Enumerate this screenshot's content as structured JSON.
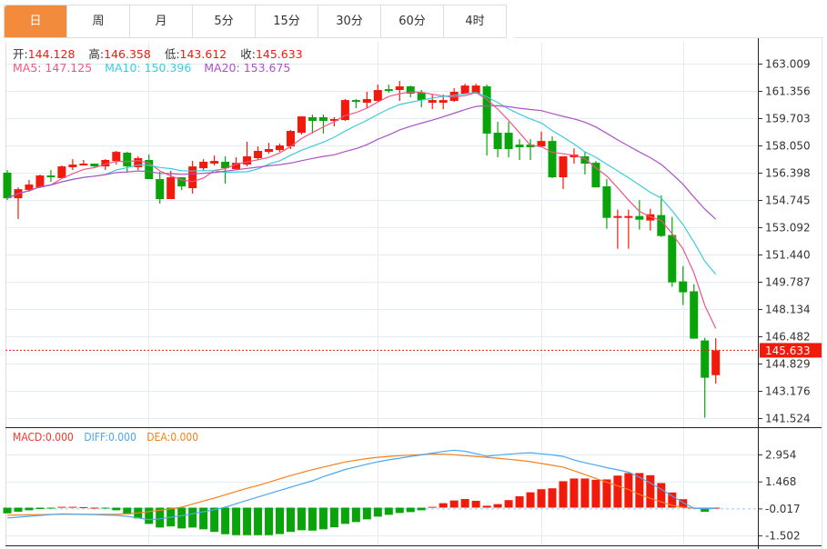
{
  "tabs": [
    {
      "label": "日",
      "active": true
    },
    {
      "label": "周"
    },
    {
      "label": "月"
    },
    {
      "label": "5分"
    },
    {
      "label": "15分"
    },
    {
      "label": "30分"
    },
    {
      "label": "60分"
    },
    {
      "label": "4时"
    }
  ],
  "ohlc_info": {
    "open_label": "开:",
    "open": "144.128",
    "high_label": "高:",
    "high": "146.358",
    "low_label": "低:",
    "low": "143.612",
    "close_label": "收:",
    "close": "145.633"
  },
  "ma_info": {
    "ma5": "MA5: 147.125",
    "ma10": "MA10: 150.396",
    "ma20": "MA20: 153.675"
  },
  "macd_info": {
    "macd": "MACD:0.000",
    "diff": "DIFF:0.000",
    "dea": "DEA:0.000"
  },
  "colors": {
    "up": "#f21a0a",
    "down": "#09a40a",
    "ma5": "#ee5686",
    "ma10": "#3ccbdd",
    "ma20": "#ab52c6",
    "diff": "#4aa8f0",
    "dea": "#f7801e",
    "tab_active": "#f28b3c"
  },
  "chart_data": [
    {
      "type": "candlestick",
      "y_axis_ticks": [
        "163.009",
        "161.356",
        "159.703",
        "158.050",
        "156.398",
        "154.745",
        "153.092",
        "151.440",
        "149.787",
        "148.134",
        "146.482",
        "144.829",
        "143.176",
        "141.524"
      ],
      "ylim": [
        141.524,
        163.009
      ],
      "current_price": "145.633",
      "ma_periods": [
        5,
        10,
        20
      ],
      "candles": [
        [
          156.4,
          156.56,
          154.74,
          154.85
        ],
        [
          154.85,
          155.51,
          153.59,
          155.4
        ],
        [
          155.35,
          155.96,
          155.24,
          155.68
        ],
        [
          155.51,
          156.28,
          155.46,
          156.23
        ],
        [
          156.23,
          156.56,
          155.85,
          156.12
        ],
        [
          156.07,
          156.84,
          156.07,
          156.78
        ],
        [
          156.73,
          157.22,
          156.56,
          156.89
        ],
        [
          156.84,
          157.17,
          156.84,
          156.95
        ],
        [
          156.95,
          156.95,
          156.67,
          156.78
        ],
        [
          156.78,
          157.22,
          156.56,
          157.17
        ],
        [
          157.11,
          157.72,
          156.89,
          157.66
        ],
        [
          157.61,
          157.66,
          156.4,
          156.78
        ],
        [
          156.73,
          157.39,
          156.56,
          157.28
        ],
        [
          157.17,
          157.5,
          156.01,
          156.01
        ],
        [
          156.01,
          156.45,
          154.52,
          154.8
        ],
        [
          154.8,
          156.51,
          154.8,
          156.12
        ],
        [
          156.12,
          156.12,
          155.35,
          155.57
        ],
        [
          155.46,
          157.11,
          155.13,
          156.78
        ],
        [
          156.67,
          157.22,
          156.56,
          157.06
        ],
        [
          156.95,
          157.44,
          156.84,
          157.11
        ],
        [
          157.06,
          157.39,
          155.73,
          156.67
        ],
        [
          156.62,
          157.33,
          156.56,
          157.0
        ],
        [
          156.89,
          158.27,
          156.78,
          157.39
        ],
        [
          157.28,
          157.99,
          157.17,
          157.72
        ],
        [
          157.66,
          158.21,
          157.55,
          157.83
        ],
        [
          157.77,
          158.16,
          157.66,
          158.05
        ],
        [
          157.99,
          158.99,
          157.83,
          158.93
        ],
        [
          158.82,
          159.81,
          158.71,
          159.81
        ],
        [
          159.76,
          159.92,
          158.77,
          159.54
        ],
        [
          159.76,
          159.92,
          158.77,
          159.54
        ],
        [
          159.54,
          159.76,
          159.21,
          159.65
        ],
        [
          159.59,
          160.86,
          159.54,
          160.8
        ],
        [
          160.8,
          160.86,
          160.31,
          160.69
        ],
        [
          160.64,
          161.3,
          160.31,
          160.86
        ],
        [
          160.75,
          161.74,
          160.69,
          161.41
        ],
        [
          161.46,
          161.74,
          161.24,
          161.35
        ],
        [
          161.41,
          161.96,
          160.75,
          161.63
        ],
        [
          161.63,
          161.68,
          160.97,
          161.19
        ],
        [
          161.24,
          161.41,
          160.36,
          160.8
        ],
        [
          160.64,
          161.13,
          160.25,
          160.8
        ],
        [
          160.64,
          161.13,
          160.25,
          160.8
        ],
        [
          160.75,
          161.52,
          160.69,
          161.3
        ],
        [
          161.19,
          161.79,
          161.19,
          161.68
        ],
        [
          161.19,
          161.79,
          161.19,
          161.68
        ],
        [
          161.63,
          161.74,
          157.44,
          158.77
        ],
        [
          158.82,
          159.48,
          157.33,
          157.83
        ],
        [
          158.82,
          159.48,
          157.33,
          157.83
        ],
        [
          158.1,
          158.43,
          157.17,
          157.94
        ],
        [
          158.1,
          158.43,
          157.17,
          157.94
        ],
        [
          157.99,
          158.88,
          157.94,
          158.32
        ],
        [
          158.32,
          158.6,
          156.07,
          156.12
        ],
        [
          156.12,
          157.39,
          155.4,
          157.39
        ],
        [
          157.33,
          157.88,
          156.95,
          157.5
        ],
        [
          157.39,
          157.66,
          156.29,
          156.95
        ],
        [
          157.0,
          157.11,
          155.51,
          155.51
        ],
        [
          155.57,
          156.01,
          153.0,
          153.66
        ],
        [
          153.66,
          154.16,
          151.79,
          153.77
        ],
        [
          153.66,
          154.16,
          151.79,
          153.77
        ],
        [
          153.77,
          154.74,
          152.95,
          153.55
        ],
        [
          153.5,
          154.21,
          152.89,
          153.88
        ],
        [
          153.83,
          155.02,
          152.51,
          152.56
        ],
        [
          152.62,
          153.72,
          149.48,
          149.75
        ],
        [
          149.81,
          150.74,
          148.38,
          149.15
        ],
        [
          149.21,
          149.64,
          146.34,
          146.34
        ],
        [
          146.23,
          146.39,
          141.55,
          143.97
        ],
        [
          144.128,
          146.358,
          143.612,
          145.633
        ]
      ]
    },
    {
      "type": "macd",
      "y_axis_ticks": [
        "2.954",
        "1.468",
        "-0.017",
        "-1.502"
      ],
      "macd": [
        -0.29,
        -0.2,
        -0.12,
        -0.05,
        -0.01,
        0.07,
        0.07,
        0.05,
        0.01,
        -0.02,
        -0.12,
        -0.34,
        -0.57,
        -0.87,
        -1.07,
        -1.01,
        -1.12,
        -1.07,
        -1.17,
        -1.31,
        -1.44,
        -1.49,
        -1.49,
        -1.49,
        -1.49,
        -1.43,
        -1.31,
        -1.22,
        -1.24,
        -1.17,
        -1.06,
        -0.87,
        -0.77,
        -0.62,
        -0.47,
        -0.37,
        -0.27,
        -0.22,
        -0.12,
        0.07,
        0.27,
        0.42,
        0.5,
        0.4,
        0.13,
        0.22,
        0.44,
        0.65,
        0.87,
        1.04,
        1.09,
        1.48,
        1.63,
        1.63,
        1.56,
        1.58,
        1.79,
        1.93,
        1.93,
        1.81,
        1.38,
        0.86,
        0.49,
        0.0,
        -0.2,
        0.0
      ],
      "diff": [
        -0.54,
        -0.5,
        -0.45,
        -0.41,
        -0.36,
        -0.32,
        -0.33,
        -0.35,
        -0.36,
        -0.38,
        -0.4,
        -0.45,
        -0.54,
        -0.63,
        -0.59,
        -0.5,
        -0.42,
        -0.31,
        -0.2,
        -0.09,
        0.05,
        0.24,
        0.43,
        0.61,
        0.79,
        0.97,
        1.15,
        1.33,
        1.5,
        1.73,
        1.93,
        2.13,
        2.27,
        2.42,
        2.55,
        2.66,
        2.75,
        2.85,
        2.93,
        3.03,
        3.12,
        3.19,
        3.13,
        3.0,
        2.86,
        2.92,
        2.97,
        3.02,
        3.05,
        2.99,
        2.93,
        2.85,
        2.65,
        2.5,
        2.37,
        2.23,
        2.11,
        1.98,
        1.7,
        1.38,
        1.03,
        0.66,
        0.3,
        0.0,
        -0.03,
        -0.02
      ],
      "dea": [
        -0.39,
        -0.38,
        -0.37,
        -0.36,
        -0.35,
        -0.34,
        -0.34,
        -0.34,
        -0.34,
        -0.34,
        -0.34,
        -0.31,
        -0.27,
        -0.19,
        -0.12,
        -0.04,
        0.05,
        0.22,
        0.39,
        0.55,
        0.73,
        0.91,
        1.09,
        1.24,
        1.42,
        1.61,
        1.79,
        1.96,
        2.12,
        2.26,
        2.4,
        2.54,
        2.64,
        2.73,
        2.8,
        2.85,
        2.89,
        2.92,
        2.95,
        2.98,
        2.97,
        2.94,
        2.89,
        2.85,
        2.8,
        2.75,
        2.69,
        2.63,
        2.56,
        2.46,
        2.36,
        2.26,
        2.06,
        1.85,
        1.63,
        1.42,
        1.22,
        1.02,
        0.75,
        0.54,
        0.34,
        0.15,
        0.03,
        0.0,
        0.0,
        0.0
      ]
    }
  ]
}
